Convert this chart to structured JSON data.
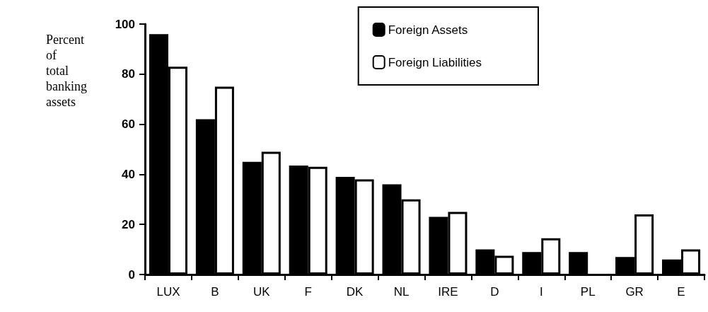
{
  "chart_data": {
    "type": "bar",
    "ylabel": "Percent of total banking assets",
    "categories": [
      "LUX",
      "B",
      "UK",
      "F",
      "DK",
      "NL",
      "IRE",
      "D",
      "I",
      "PL",
      "GR",
      "E"
    ],
    "series": [
      {
        "name": "Foreign Assets",
        "color": "#000000",
        "values": [
          96,
          62,
          45,
          43.5,
          39,
          36,
          23,
          10,
          9,
          9,
          7,
          6
        ]
      },
      {
        "name": "Foreign Liabilities",
        "color": "#ffffff",
        "values": [
          83,
          75,
          49,
          43,
          38,
          30,
          25,
          7.5,
          14.5,
          null,
          24,
          10
        ]
      }
    ],
    "ylim": [
      0,
      100
    ],
    "yticks": [
      0,
      20,
      40,
      60,
      80,
      100
    ],
    "grid": false,
    "legend": "top right"
  }
}
